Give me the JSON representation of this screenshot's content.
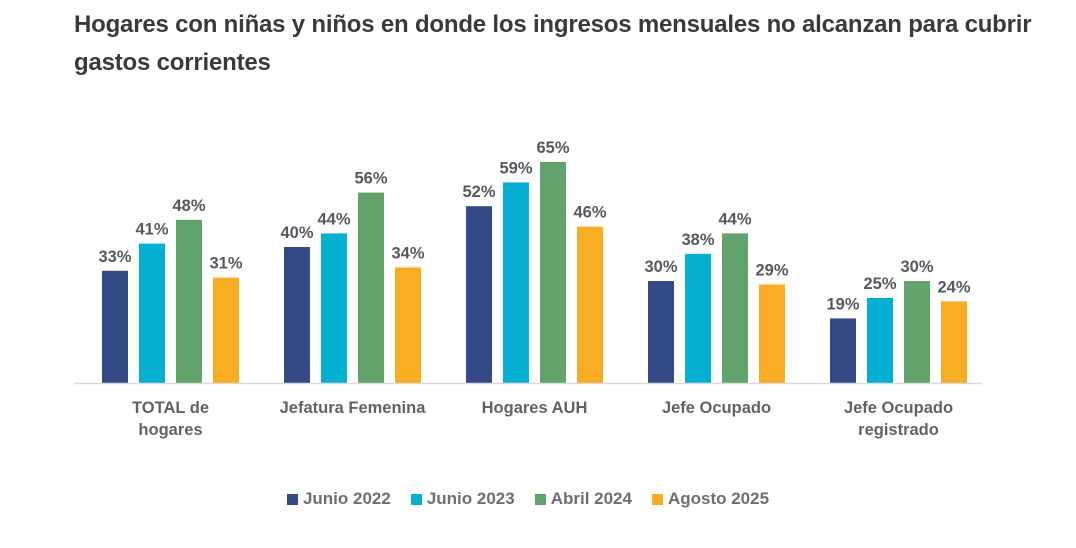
{
  "title": "Hogares con niñas y niños en donde los ingresos mensuales no alcanzan para cubrir gastos corrientes",
  "chart_data": {
    "type": "bar",
    "title": "Hogares con niñas y niños en donde los ingresos mensuales no alcanzan para cubrir gastos corrientes",
    "xlabel": "",
    "ylabel": "",
    "ylim": [
      0,
      70
    ],
    "grid": false,
    "legend_position": "bottom",
    "value_suffix": "%",
    "categories": [
      [
        "TOTAL de",
        "hogares"
      ],
      [
        "Jefatura Femenina"
      ],
      [
        "Hogares AUH"
      ],
      [
        "Jefe Ocupado"
      ],
      [
        "Jefe Ocupado",
        "registrado"
      ]
    ],
    "series": [
      {
        "name": "Junio 2022",
        "color": "#344a86",
        "values": [
          33,
          40,
          52,
          30,
          19
        ]
      },
      {
        "name": "Junio 2023",
        "color": "#06b0d2",
        "values": [
          41,
          44,
          59,
          38,
          25
        ]
      },
      {
        "name": "Abril 2024",
        "color": "#61a36a",
        "values": [
          48,
          56,
          65,
          44,
          30
        ]
      },
      {
        "name": "Agosto 2025",
        "color": "#f9ad24",
        "values": [
          31,
          34,
          46,
          29,
          24
        ]
      }
    ]
  }
}
